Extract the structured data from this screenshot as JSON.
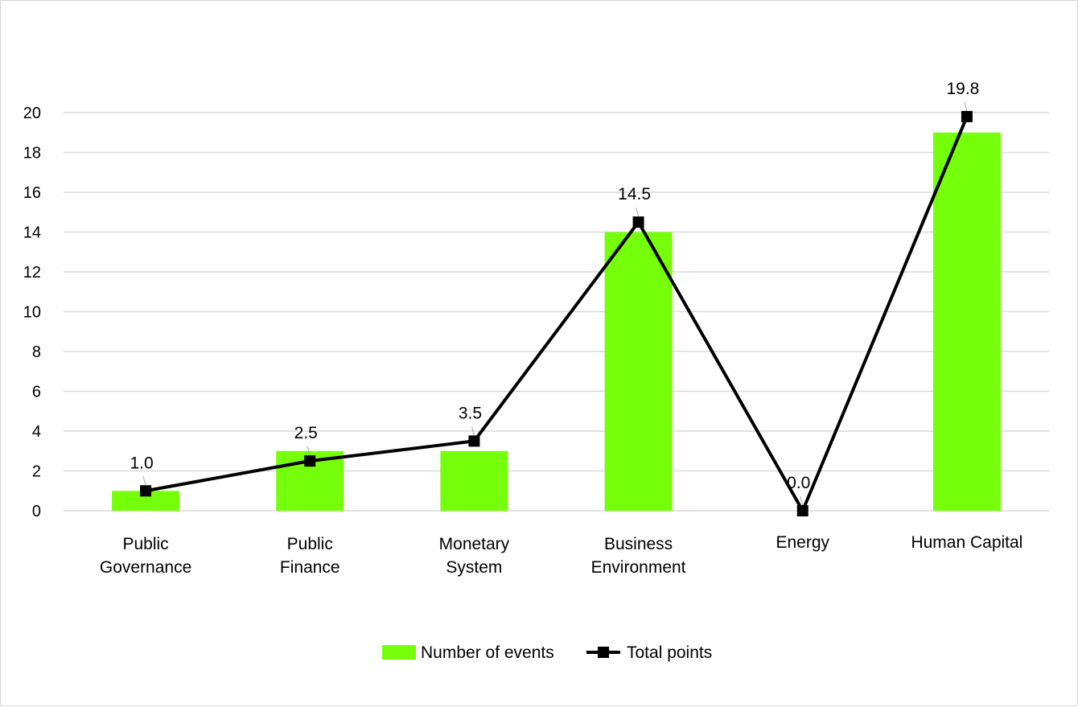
{
  "chart_data": {
    "type": "bar",
    "categories": [
      [
        "Public",
        "Governance"
      ],
      [
        "Public",
        "Finance"
      ],
      [
        "Monetary",
        "System"
      ],
      [
        "Business",
        "Environment"
      ],
      [
        "Energy"
      ],
      [
        "Human Capital"
      ]
    ],
    "series": [
      {
        "name": "Number of events",
        "type": "bar",
        "color": "#76ff0a",
        "values": [
          1,
          3,
          3,
          14,
          0,
          19
        ]
      },
      {
        "name": "Total points",
        "type": "line",
        "color": "#000000",
        "values": [
          1.0,
          2.5,
          3.5,
          14.5,
          0.0,
          19.8
        ],
        "labels": [
          "1.0",
          "2.5",
          "3.5",
          "14.5",
          "0.0",
          "19.8"
        ]
      }
    ],
    "ylim": [
      0,
      20
    ],
    "yticks": [
      0,
      2,
      4,
      6,
      8,
      10,
      12,
      14,
      16,
      18,
      20
    ],
    "grid": true,
    "legend": "bottom"
  }
}
